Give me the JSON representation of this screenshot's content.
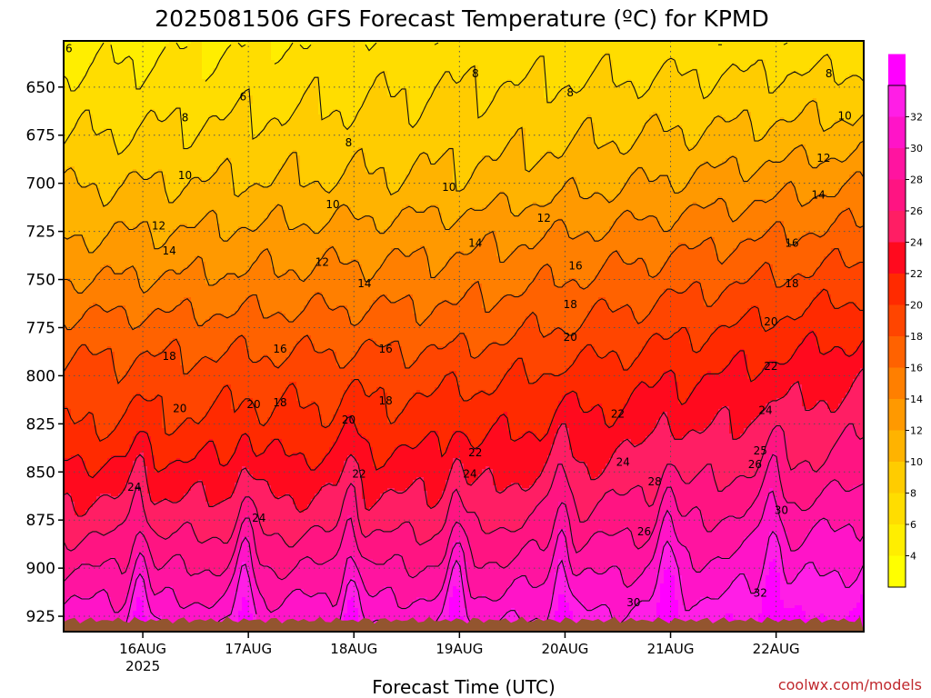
{
  "title": "2025081506 GFS Forecast Temperature (ºC) for KPMD",
  "credit": "coolwx.com/models",
  "colors": {
    "ground": "#93552f",
    "grid": "#555555",
    "contour": "#111111",
    "levels": [
      "#ffff00",
      "#ffee00",
      "#ffdd00",
      "#ffcc00",
      "#ffb300",
      "#ff9900",
      "#ff7f00",
      "#ff6200",
      "#ff4500",
      "#ff2a00",
      "#ff0a1e",
      "#ff1e64",
      "#ff1482",
      "#ff14a0",
      "#ff14c8",
      "#ff1ee6",
      "#ff00ff"
    ]
  },
  "chart_data": {
    "type": "heatmap",
    "title": "2025081506 GFS Forecast Temperature (ºC) for KPMD",
    "xlabel": "Forecast Time (UTC)",
    "ylabel": "",
    "x_ticks": [
      "16AUG",
      "17AUG",
      "18AUG",
      "19AUG",
      "20AUG",
      "21AUG",
      "22AUG"
    ],
    "x_year": "2025",
    "y_ticks": [
      650,
      675,
      700,
      725,
      750,
      775,
      800,
      825,
      850,
      875,
      900,
      925
    ],
    "y_range_hpa": [
      626,
      933
    ],
    "x_range_days": [
      15.25,
      22.83
    ],
    "colorbar_ticks": [
      4,
      6,
      8,
      10,
      12,
      14,
      16,
      18,
      20,
      22,
      24,
      26,
      28,
      30,
      32
    ],
    "colorbar_range": [
      2,
      34
    ],
    "contour_interval": 2,
    "series": [
      {
        "day": 16,
        "hpa": [
          650,
          675,
          700,
          725,
          750,
          775,
          800,
          825,
          850,
          875,
          900
        ],
        "temp": [
          6.8,
          8.2,
          10.0,
          12.0,
          14.2,
          16.8,
          18.8,
          20.4,
          23.2,
          25.8,
          29.0
        ]
      },
      {
        "day": 19,
        "hpa": [
          650,
          675,
          700,
          725,
          750,
          775,
          800,
          825,
          850,
          875,
          900
        ],
        "temp": [
          8.0,
          9.2,
          10.4,
          13.0,
          15.0,
          17.0,
          19.4,
          21.4,
          23.6,
          26.0,
          29.2
        ]
      },
      {
        "day": 22,
        "hpa": [
          650,
          675,
          700,
          725,
          750,
          775,
          800,
          825,
          850,
          875,
          900
        ],
        "temp": [
          8.6,
          10.6,
          13.2,
          15.8,
          18.2,
          20.6,
          22.8,
          24.8,
          26.8,
          29.6,
          32.2
        ]
      }
    ],
    "contour_labels": [
      {
        "day": 15.3,
        "hpa": 630,
        "text": "6"
      },
      {
        "day": 16.95,
        "hpa": 655,
        "text": "6"
      },
      {
        "day": 16.4,
        "hpa": 666,
        "text": "8"
      },
      {
        "day": 17.95,
        "hpa": 679,
        "text": "8"
      },
      {
        "day": 19.15,
        "hpa": 643,
        "text": "8"
      },
      {
        "day": 20.05,
        "hpa": 653,
        "text": "8"
      },
      {
        "day": 22.5,
        "hpa": 643,
        "text": "8"
      },
      {
        "day": 22.65,
        "hpa": 665,
        "text": "10"
      },
      {
        "day": 16.4,
        "hpa": 696,
        "text": "10"
      },
      {
        "day": 17.8,
        "hpa": 711,
        "text": "10"
      },
      {
        "day": 18.9,
        "hpa": 702,
        "text": "10"
      },
      {
        "day": 22.45,
        "hpa": 687,
        "text": "12"
      },
      {
        "day": 19.8,
        "hpa": 718,
        "text": "12"
      },
      {
        "day": 16.15,
        "hpa": 722,
        "text": "12"
      },
      {
        "day": 22.4,
        "hpa": 706,
        "text": "14"
      },
      {
        "day": 16.25,
        "hpa": 735,
        "text": "14"
      },
      {
        "day": 17.7,
        "hpa": 741,
        "text": "12"
      },
      {
        "day": 19.15,
        "hpa": 731,
        "text": "14"
      },
      {
        "day": 18.1,
        "hpa": 752,
        "text": "14"
      },
      {
        "day": 22.15,
        "hpa": 731,
        "text": "16"
      },
      {
        "day": 20.1,
        "hpa": 743,
        "text": "16"
      },
      {
        "day": 22.15,
        "hpa": 752,
        "text": "18"
      },
      {
        "day": 20.05,
        "hpa": 763,
        "text": "18"
      },
      {
        "day": 21.95,
        "hpa": 772,
        "text": "20"
      },
      {
        "day": 17.3,
        "hpa": 786,
        "text": "16"
      },
      {
        "day": 18.3,
        "hpa": 786,
        "text": "16"
      },
      {
        "day": 16.25,
        "hpa": 790,
        "text": "18"
      },
      {
        "day": 20.05,
        "hpa": 780,
        "text": "20"
      },
      {
        "day": 21.95,
        "hpa": 795,
        "text": "22"
      },
      {
        "day": 16.35,
        "hpa": 817,
        "text": "20"
      },
      {
        "day": 17.05,
        "hpa": 815,
        "text": "20"
      },
      {
        "day": 17.3,
        "hpa": 814,
        "text": "18"
      },
      {
        "day": 18.3,
        "hpa": 813,
        "text": "18"
      },
      {
        "day": 20.5,
        "hpa": 820,
        "text": "22"
      },
      {
        "day": 21.9,
        "hpa": 818,
        "text": "24"
      },
      {
        "day": 17.95,
        "hpa": 823,
        "text": "20"
      },
      {
        "day": 19.15,
        "hpa": 840,
        "text": "22"
      },
      {
        "day": 21.85,
        "hpa": 839,
        "text": "25"
      },
      {
        "day": 20.55,
        "hpa": 845,
        "text": "24"
      },
      {
        "day": 21.8,
        "hpa": 846,
        "text": "26"
      },
      {
        "day": 18.05,
        "hpa": 851,
        "text": "22"
      },
      {
        "day": 19.1,
        "hpa": 851,
        "text": "24"
      },
      {
        "day": 15.92,
        "hpa": 858,
        "text": "24"
      },
      {
        "day": 20.85,
        "hpa": 855,
        "text": "28"
      },
      {
        "day": 22.05,
        "hpa": 870,
        "text": "30"
      },
      {
        "day": 17.1,
        "hpa": 874,
        "text": "24"
      },
      {
        "day": 20.75,
        "hpa": 881,
        "text": "26"
      },
      {
        "day": 21.85,
        "hpa": 913,
        "text": "32"
      },
      {
        "day": 20.65,
        "hpa": 918,
        "text": "30"
      }
    ]
  }
}
